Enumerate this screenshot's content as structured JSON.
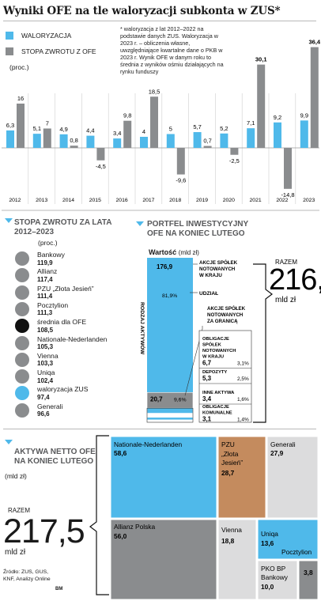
{
  "title": "Wyniki OFE na tle waloryzacji subkonta w ZUS*",
  "legend": {
    "waloryzacja": "WALORYZACJA",
    "stopa": "STOPA ZWROTU Z OFE",
    "unit": "(proc.)"
  },
  "note": "* waloryzacja z lat 2012–2022 na podstawie danych ZUS. Waloryzacja w 2023 r. – obliczenia własne, uwzględniające kwartalne dane o PKB w 2023 r. Wynik OFE w danym roku to średnia z wyników ośmiu działających na rynku funduszy",
  "colors": {
    "blue": "#4fb9ea",
    "gray": "#8a8c8e",
    "light": "#dcdcdd",
    "brown": "#c48b5e",
    "black": "#111111"
  },
  "chart_data": [
    {
      "type": "bar",
      "title": "Wyniki OFE na tle waloryzacji subkonta w ZUS*",
      "categories": [
        "2012",
        "2013",
        "2014",
        "2015",
        "2016",
        "2017",
        "2018",
        "2019",
        "2020",
        "2021",
        "2022",
        "2023"
      ],
      "series": [
        {
          "name": "WALORYZACJA",
          "values": [
            6.3,
            5.1,
            4.9,
            4.4,
            3.4,
            4,
            5,
            5.7,
            5.2,
            7.1,
            9.2,
            9.9
          ]
        },
        {
          "name": "STOPA ZWROTU Z OFE",
          "values": [
            16,
            7,
            0.8,
            -4.5,
            9.8,
            18.5,
            -9.6,
            0.7,
            -2.5,
            30.1,
            -14.8,
            36.4
          ]
        }
      ],
      "value_labels": {
        "WALORYZACJA": [
          "6,3",
          "5,1",
          "4,9",
          "4,4",
          "3,4",
          "4",
          "5",
          "5,7",
          "5,2",
          "7,1",
          "9,2",
          "9,9"
        ],
        "STOPA ZWROTU Z OFE": [
          "16",
          "7",
          "0,8",
          "-4,5",
          "9,8",
          "18,5",
          "-9,6",
          "0,7",
          "-2,5",
          "30,1",
          "-14,8",
          "36,4"
        ]
      },
      "ylabel": "(proc.)",
      "ylim": [
        -16,
        38
      ]
    },
    {
      "type": "table",
      "title": "STOPA ZWROTU ZA LATA 2012–2023",
      "unit": "(proc.)",
      "rows": [
        {
          "name": "Bankowy",
          "value": "119,9",
          "color": "gray"
        },
        {
          "name": "Allianz",
          "value": "117,4",
          "color": "gray"
        },
        {
          "name": "PZU „Złota Jesień”",
          "value": "111,4",
          "color": "gray"
        },
        {
          "name": "Pocztylion",
          "value": "111,3",
          "color": "gray"
        },
        {
          "name": "średnia dla OFE",
          "value": "108,5",
          "color": "black"
        },
        {
          "name": "Nationale-Nederlanden",
          "value": "105,3",
          "color": "gray"
        },
        {
          "name": "Vienna",
          "value": "103,3",
          "color": "gray"
        },
        {
          "name": "Uniqa",
          "value": "102,4",
          "color": "gray"
        },
        {
          "name": "waloryzacja ZUS",
          "value": "97,4",
          "color": "blue"
        },
        {
          "name": "Generali",
          "value": "96,6",
          "color": "gray"
        }
      ]
    },
    {
      "type": "bar",
      "title": "PORTFEL INWESTYCYJNY OFE NA KONIEC LUTEGO",
      "header": "Wartość",
      "unit": "(mld zł)",
      "axis_label": "RODZAJ AKTYWÓW",
      "total_label": "RAZEM",
      "total": "216,1",
      "total_unit": "mld zł",
      "segments": [
        {
          "name": "AKCJE SPÓŁEK NOTOWANYCH W KRAJU",
          "value": 176.9,
          "label": "176,9",
          "share": "81,9%",
          "share_name": "UDZIAŁ"
        },
        {
          "name": "AKCJE SPÓŁEK NOTOWANYCH ZA GRANICĄ",
          "value": 20.7,
          "label": "20,7",
          "share": "9,6%"
        },
        {
          "name": "OBLIGACJE SPÓŁEK NOTOWANYCH W KRAJU",
          "value": 6.7,
          "label": "6,7",
          "share": "3,1%"
        },
        {
          "name": "DEPOZYTY",
          "value": 5.3,
          "label": "5,3",
          "share": "2,5%"
        },
        {
          "name": "INNE AKTYWA",
          "value": 3.4,
          "label": "3,4",
          "share": "1,6%"
        },
        {
          "name": "OBLIGACJE KOMUNALNE",
          "value": 3.1,
          "label": "3,1",
          "share": "1,4%"
        }
      ]
    },
    {
      "type": "treemap",
      "title": "AKTYWA NETTO OFE NA KONIEC LUTEGO",
      "unit": "(mld zł)",
      "total_label": "RAZEM",
      "total": "217,5",
      "total_unit": "mld zł",
      "items": [
        {
          "name": "Nationale-Nederlanden",
          "value": 58.6,
          "label": "58,6",
          "color": "blue"
        },
        {
          "name": "Allianz Polska",
          "value": 56.0,
          "label": "56,0",
          "color": "gray"
        },
        {
          "name": "PZU „Złota Jesień”",
          "value": 28.7,
          "label": "28,7",
          "color": "brown"
        },
        {
          "name": "Generali",
          "value": 27.9,
          "label": "27,9",
          "color": "light"
        },
        {
          "name": "Vienna",
          "value": 18.8,
          "label": "18,8",
          "color": "light"
        },
        {
          "name": "Uniqa",
          "value": 13.6,
          "label": "13,6",
          "color": "blue"
        },
        {
          "name": "Pocztylion",
          "value": 3.8,
          "label": "3,8",
          "color": "gray"
        },
        {
          "name": "PKO BP Bankowy",
          "value": 10.0,
          "label": "10,0",
          "color": "light"
        }
      ]
    }
  ],
  "source": "Źródło: ZUS, GUS, KNF, Analizy Online",
  "credit": "BM"
}
